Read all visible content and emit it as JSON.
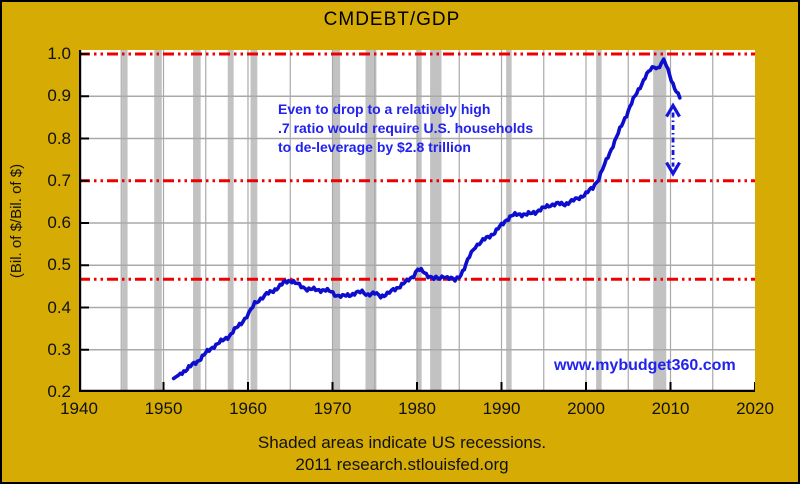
{
  "window": {
    "bg_color": "#D5AB04",
    "border_color": "#000000",
    "plot_bg": "#FFFFFF"
  },
  "title": "CMDEBT/GDP",
  "y_axis_label": "(Bil. of $/Bil. of $)",
  "annotation": {
    "lines": [
      "Even to drop to a relatively high",
      ".7 ratio would require U.S. households",
      "to de-leverage by $2.8 trillion"
    ],
    "color": "#2222EE"
  },
  "watermark": {
    "text": "www.mybudget360.com",
    "color": "#2222EE"
  },
  "footer": {
    "note": "Shaded areas indicate US recessions.",
    "source": "2011 research.stlouisfed.org"
  },
  "chart_data": {
    "type": "line",
    "title": "CMDEBT/GDP",
    "xlabel": "",
    "ylabel": "(Bil. of $/Bil. of $)",
    "xlim": [
      1940,
      2020
    ],
    "ylim": [
      0.2,
      1.0
    ],
    "x_ticks": [
      1940,
      1950,
      1960,
      1970,
      1980,
      1990,
      2000,
      2010,
      2020
    ],
    "y_ticks": [
      "1.0",
      "0.9",
      "0.8",
      "0.7",
      "0.6",
      "0.5",
      "0.4",
      "0.3",
      "0.2"
    ],
    "y_tick_values": [
      1.0,
      0.9,
      0.8,
      0.7,
      0.6,
      0.5,
      0.4,
      0.3,
      0.2
    ],
    "y_gridlines": [
      0.3,
      0.4,
      0.5,
      0.6,
      0.8,
      0.9
    ],
    "x_gridlines": [
      1945,
      1950,
      1955,
      1960,
      1965,
      1970,
      1975,
      1980,
      1985,
      1990,
      1995,
      2000,
      2005,
      2010,
      2015
    ],
    "grid_color": "#A9A9A9",
    "legend": "none",
    "reference_lines": {
      "values": [
        1.0,
        0.7,
        0.467
      ],
      "color": "#EE0000",
      "style": "dash-dot-dot"
    },
    "recession_bands": {
      "color": "#C2C2C2",
      "ranges": [
        [
          1945.1,
          1945.75
        ],
        [
          1948.9,
          1949.8
        ],
        [
          1953.5,
          1954.4
        ],
        [
          1957.6,
          1958.3
        ],
        [
          1960.3,
          1961.1
        ],
        [
          1969.95,
          1970.9
        ],
        [
          1973.9,
          1975.2
        ],
        [
          1980.05,
          1980.55
        ],
        [
          1981.55,
          1982.9
        ],
        [
          1990.55,
          1991.2
        ],
        [
          2001.2,
          2001.85
        ],
        [
          2007.95,
          2009.5
        ]
      ]
    },
    "series": [
      {
        "name": "CMDEBT/GDP",
        "color": "#0D0DCE",
        "points": [
          [
            1951.2,
            0.232
          ],
          [
            1952.0,
            0.243
          ],
          [
            1953.0,
            0.258
          ],
          [
            1954.0,
            0.272
          ],
          [
            1955.0,
            0.292
          ],
          [
            1956.0,
            0.309
          ],
          [
            1957.0,
            0.322
          ],
          [
            1957.8,
            0.333
          ],
          [
            1958.6,
            0.351
          ],
          [
            1959.4,
            0.368
          ],
          [
            1960.1,
            0.385
          ],
          [
            1960.8,
            0.41
          ],
          [
            1961.5,
            0.421
          ],
          [
            1962.2,
            0.431
          ],
          [
            1963.0,
            0.44
          ],
          [
            1963.8,
            0.451
          ],
          [
            1964.4,
            0.461
          ],
          [
            1965.0,
            0.464
          ],
          [
            1965.6,
            0.458
          ],
          [
            1966.3,
            0.45
          ],
          [
            1967.0,
            0.444
          ],
          [
            1968.0,
            0.442
          ],
          [
            1969.0,
            0.441
          ],
          [
            1969.8,
            0.438
          ],
          [
            1970.5,
            0.429
          ],
          [
            1971.2,
            0.426
          ],
          [
            1972.0,
            0.43
          ],
          [
            1972.8,
            0.434
          ],
          [
            1973.5,
            0.437
          ],
          [
            1974.2,
            0.431
          ],
          [
            1975.0,
            0.433
          ],
          [
            1975.7,
            0.427
          ],
          [
            1976.5,
            0.432
          ],
          [
            1977.2,
            0.441
          ],
          [
            1978.0,
            0.451
          ],
          [
            1978.8,
            0.462
          ],
          [
            1979.6,
            0.476
          ],
          [
            1980.1,
            0.49
          ],
          [
            1980.7,
            0.485
          ],
          [
            1981.3,
            0.476
          ],
          [
            1982.0,
            0.469
          ],
          [
            1982.7,
            0.468
          ],
          [
            1983.2,
            0.475
          ],
          [
            1983.8,
            0.47
          ],
          [
            1984.5,
            0.464
          ],
          [
            1985.0,
            0.473
          ],
          [
            1985.6,
            0.493
          ],
          [
            1986.2,
            0.52
          ],
          [
            1986.9,
            0.545
          ],
          [
            1987.6,
            0.556
          ],
          [
            1988.4,
            0.566
          ],
          [
            1989.2,
            0.578
          ],
          [
            1990.0,
            0.595
          ],
          [
            1990.6,
            0.608
          ],
          [
            1991.2,
            0.617
          ],
          [
            1992.0,
            0.621
          ],
          [
            1993.0,
            0.62
          ],
          [
            1994.0,
            0.626
          ],
          [
            1994.8,
            0.633
          ],
          [
            1995.6,
            0.642
          ],
          [
            1996.5,
            0.645
          ],
          [
            1997.5,
            0.645
          ],
          [
            1998.3,
            0.651
          ],
          [
            1999.2,
            0.66
          ],
          [
            2000.0,
            0.669
          ],
          [
            2000.8,
            0.684
          ],
          [
            2001.5,
            0.705
          ],
          [
            2002.2,
            0.738
          ],
          [
            2003.0,
            0.775
          ],
          [
            2003.8,
            0.812
          ],
          [
            2004.6,
            0.848
          ],
          [
            2005.4,
            0.884
          ],
          [
            2006.2,
            0.915
          ],
          [
            2007.0,
            0.945
          ],
          [
            2007.6,
            0.962
          ],
          [
            2008.1,
            0.971
          ],
          [
            2008.5,
            0.967
          ],
          [
            2008.9,
            0.976
          ],
          [
            2009.2,
            0.984
          ],
          [
            2009.5,
            0.973
          ],
          [
            2009.9,
            0.95
          ],
          [
            2010.3,
            0.93
          ],
          [
            2010.7,
            0.911
          ],
          [
            2011.1,
            0.896
          ]
        ]
      }
    ],
    "arrow": {
      "x_year": 2010.3,
      "from_value": 0.878,
      "to_value": 0.717,
      "color": "#1414DD"
    }
  }
}
